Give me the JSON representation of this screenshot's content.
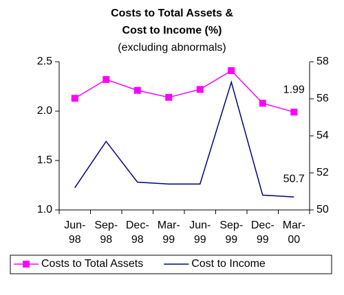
{
  "chart_data": {
    "type": "line",
    "title": [
      "Costs to Total Assets &",
      "Cost to Income (%)"
    ],
    "subtitle": "(excluding abnormals)",
    "categories": [
      "Jun-98",
      "Sep-98",
      "Dec-98",
      "Mar-99",
      "Jun-99",
      "Sep-99",
      "Dec-99",
      "Mar-00"
    ],
    "series": [
      {
        "name": "Costs to Total Assets",
        "color": "#ff00ff",
        "marker": "square",
        "values": [
          2.13,
          2.32,
          2.21,
          2.14,
          2.22,
          2.41,
          2.08,
          1.99
        ],
        "labeled": [
          7
        ]
      },
      {
        "name": "Cost to Income",
        "color": "#000080",
        "axis": "y2",
        "values": [
          51.2,
          53.7,
          51.5,
          51.4,
          51.4,
          56.9,
          50.8,
          50.7
        ],
        "labeled": [
          7
        ]
      }
    ],
    "ylim": [
      1,
      2.5
    ],
    "yticks": [
      {
        "value": 1,
        "label": "1.0"
      },
      1.5,
      {
        "value": 2,
        "label": "2.0"
      },
      2.5
    ],
    "y2lim": [
      50,
      58
    ],
    "y2ticks": [
      50,
      52,
      54,
      56,
      58
    ],
    "grid": false,
    "legend": "bottom"
  }
}
